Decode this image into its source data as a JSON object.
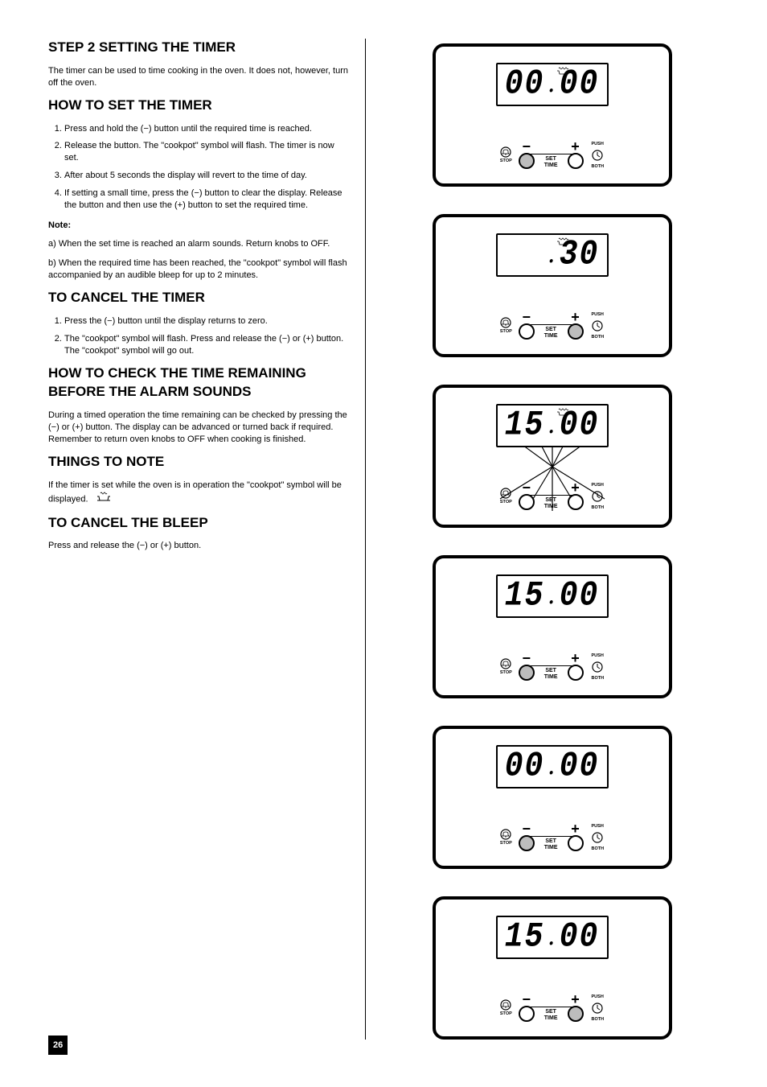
{
  "page_number": "26",
  "left": {
    "heading1": "STEP 2 SETTING THE TIMER",
    "intro": "The timer can be used to time cooking in the oven. It does not, however, turn off the oven.",
    "heading2": "HOW TO SET THE TIMER",
    "steps": [
      "Press and hold the (−) button until the required time is reached.",
      "Release the button. The \"cookpot\" symbol will flash. The timer is now set.",
      "After about 5 seconds the display will revert to the time of day.",
      "If setting a small time, press the (−) button to clear the display. Release the button and then use the (+) button to set the required time."
    ],
    "note_label": "Note:",
    "note_steps": [
      "a) When the set time is reached an alarm sounds. Return knobs to OFF.",
      "b) When the required time has been reached, the \"cookpot\" symbol will flash accompanied by an audible bleep for up to 2 minutes."
    ],
    "heading3": "TO CANCEL THE TIMER",
    "cancel_steps": [
      "Press the (−) button until the display returns to zero.",
      "The \"cookpot\" symbol will flash. Press and release the (−) or (+) button. The \"cookpot\" symbol will go out."
    ],
    "heading4": "HOW TO CHECK THE TIME REMAINING BEFORE THE ALARM SOUNDS",
    "check_text": "During a timed operation the time remaining can be checked by pressing the (−) or (+) button. The display can be advanced or turned back if required. Remember to return oven knobs to OFF when cooking is finished.",
    "heading5": "THINGS TO NOTE",
    "things_text": "If the timer is set while the oven is in operation the \"cookpot\" symbol       will be displayed.",
    "heading6": "TO CANCEL THE BLEEP",
    "cancel_bleep": "Press and release the (−) or (+) button."
  },
  "labels": {
    "set": "SET",
    "time": "TIME",
    "stop": "STOP",
    "push": "PUSH",
    "both": "BOTH",
    "minus": "−",
    "plus": "+"
  },
  "panels": [
    {
      "digits_left": "00",
      "digits_right": "00",
      "heat": true,
      "flash": false,
      "minus_shaded": true,
      "plus_shaded": false
    },
    {
      "digits_left": "",
      "digits_right": "30",
      "heat": true,
      "flash": false,
      "minus_shaded": false,
      "plus_shaded": true
    },
    {
      "digits_left": "15",
      "digits_right": "00",
      "heat": true,
      "flash": true,
      "minus_shaded": false,
      "plus_shaded": false
    },
    {
      "digits_left": "15",
      "digits_right": "00",
      "heat": false,
      "flash": false,
      "minus_shaded": true,
      "plus_shaded": false
    },
    {
      "digits_left": "00",
      "digits_right": "00",
      "heat": false,
      "flash": false,
      "minus_shaded": true,
      "plus_shaded": false
    },
    {
      "digits_left": "15",
      "digits_right": "00",
      "heat": false,
      "flash": false,
      "minus_shaded": false,
      "plus_shaded": true
    }
  ],
  "colors": {
    "fg": "#000000",
    "bg": "#ffffff",
    "shaded": "#bdbdbd"
  }
}
